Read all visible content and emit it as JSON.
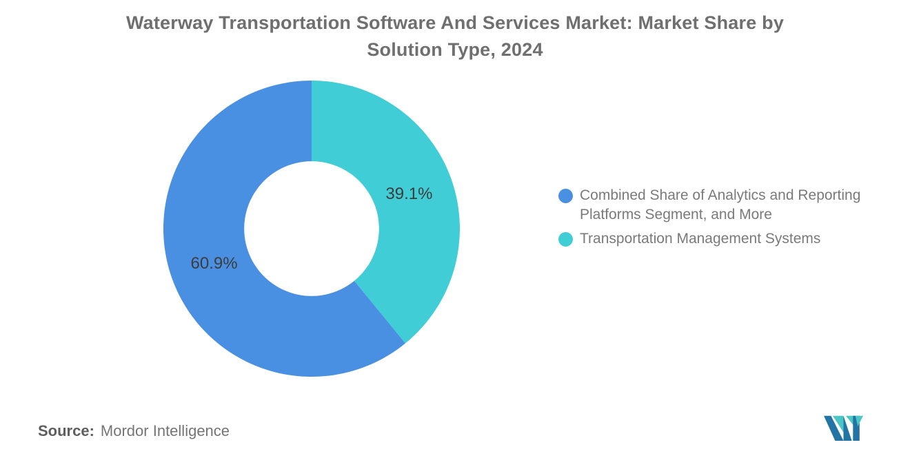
{
  "header": {
    "title_line1": "Waterway Transportation Software And Services Market: Market Share by",
    "title_line2": "Solution Type, 2024"
  },
  "chart_data": {
    "type": "pie",
    "title": "Waterway Transportation Software And Services Market: Market Share by Solution Type, 2024",
    "donut": true,
    "donut_hole_ratio": 0.455,
    "start_angle_deg": 0,
    "direction": "clockwise",
    "legend_position": "right",
    "series": [
      {
        "name": "Transportation Management Systems",
        "value": 39.1,
        "label": "39.1%",
        "color": "#41cdd6"
      },
      {
        "name": "Combined Share of Analytics and Reporting Platforms Segment, and More",
        "value": 60.9,
        "label": "60.9%",
        "color": "#4a90e2"
      }
    ]
  },
  "legend": {
    "items": [
      {
        "label": "Combined Share of Analytics and Reporting Platforms Segment, and More",
        "color": "#4a90e2"
      },
      {
        "label": "Transportation Management Systems",
        "color": "#41cdd6"
      }
    ]
  },
  "source": {
    "label": "Source:",
    "value": "Mordor Intelligence"
  },
  "logo": {
    "name": "mordor-intelligence-logo",
    "dark": "#2274a5",
    "teal": "#4cc5c5"
  },
  "colors": {
    "background": "#ffffff",
    "title_text": "#6f6f6f",
    "legend_text": "#7a7a7a",
    "slice_label_text": "#3c3c3c",
    "source_text": "#757575"
  }
}
